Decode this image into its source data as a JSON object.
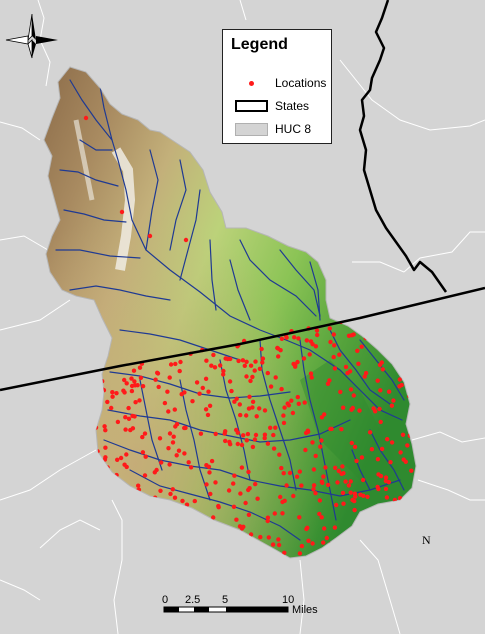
{
  "legend": {
    "title": "Legend",
    "items": [
      {
        "label": "Locations",
        "symbol": "red-dot"
      },
      {
        "label": "States",
        "symbol": "black-outline-box"
      },
      {
        "label": "HUC 8",
        "symbol": "gray-fill-box"
      }
    ]
  },
  "north_arrow": {
    "label": "N"
  },
  "scale_bar": {
    "ticks": [
      "0",
      "2.5",
      "5",
      "10"
    ],
    "unit": "Miles"
  },
  "colors": {
    "background": "#d4d4d4",
    "boundary_lines": "#ffffff",
    "state_line": "#000000",
    "streams": "#1f3a93",
    "locations": "#ff1a1a",
    "elevation_high": "#ffffff",
    "elevation_mid_high": "#8b6b47",
    "elevation_mid": "#c6d27a",
    "elevation_low": "#2f8a2f"
  }
}
